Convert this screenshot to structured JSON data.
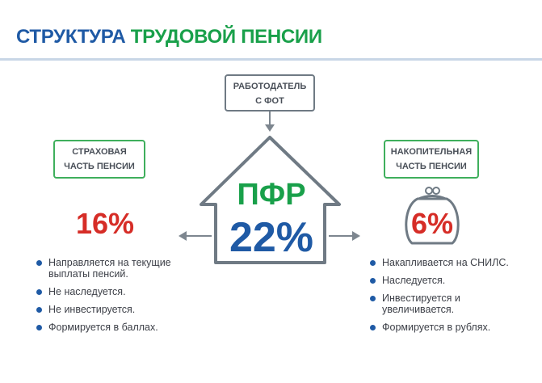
{
  "title": {
    "part1": "СТРУКТУРА",
    "part2": "ТРУДОВОЙ ПЕНСИИ"
  },
  "employer": {
    "line1": "РАБОТОДАТЕЛЬ",
    "line2": "С ФОТ"
  },
  "center": {
    "name": "ПФР",
    "rate": "22%"
  },
  "left": {
    "label_line1": "СТРАХОВАЯ",
    "label_line2": "ЧАСТЬ ПЕНСИИ",
    "percent": "16%",
    "bullets": [
      "Направляется на текущие выплаты пенсий.",
      "Не наследуется.",
      "Не инвестируется.",
      "Формируется в баллах."
    ]
  },
  "right": {
    "label_line1": "НАКОПИТЕЛЬНАЯ",
    "label_line2": "ЧАСТЬ ПЕНСИИ",
    "percent": "6%",
    "bullets": [
      "Накапливается на СНИЛС.",
      "Наследуется.",
      "Инвестируется и увеличивается.",
      "Формируется в рублях."
    ]
  },
  "colors": {
    "blue": "#1f5aa5",
    "green": "#19a04a",
    "red": "#d62d27",
    "gray": "#6f7a84"
  }
}
